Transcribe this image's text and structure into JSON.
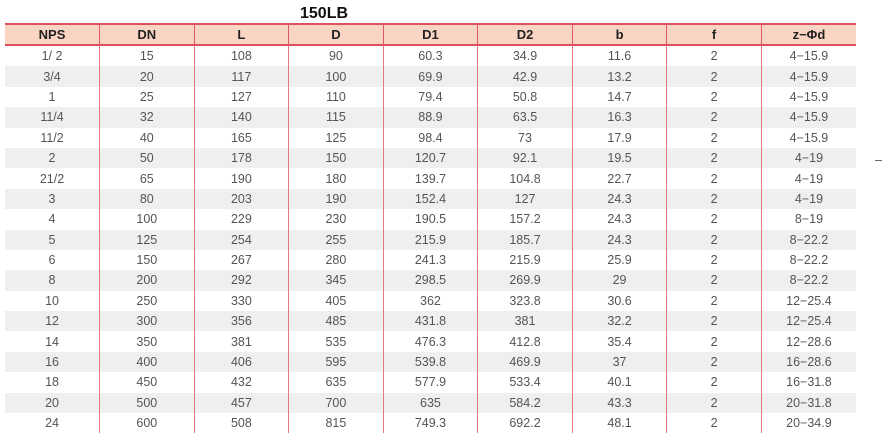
{
  "title": "150LB",
  "headers": [
    "NPS",
    "DN",
    "L",
    "D",
    "D1",
    "D2",
    "b",
    "f",
    "z−Φd"
  ],
  "rows": [
    [
      "1/ 2",
      "15",
      "108",
      "90",
      "60.3",
      "34.9",
      "11.6",
      "2",
      "4−15.9"
    ],
    [
      "3/4",
      "20",
      "117",
      "100",
      "69.9",
      "42.9",
      "13.2",
      "2",
      "4−15.9"
    ],
    [
      "1",
      "25",
      "127",
      "110",
      "79.4",
      "50.8",
      "14.7",
      "2",
      "4−15.9"
    ],
    [
      "11/4",
      "32",
      "140",
      "115",
      "88.9",
      "63.5",
      "16.3",
      "2",
      "4−15.9"
    ],
    [
      "11/2",
      "40",
      "165",
      "125",
      "98.4",
      "73",
      "17.9",
      "2",
      "4−15.9"
    ],
    [
      "2",
      "50",
      "178",
      "150",
      "120.7",
      "92.1",
      "19.5",
      "2",
      "4−19"
    ],
    [
      "21/2",
      "65",
      "190",
      "180",
      "139.7",
      "104.8",
      "22.7",
      "2",
      "4−19"
    ],
    [
      "3",
      "80",
      "203",
      "190",
      "152.4",
      "127",
      "24.3",
      "2",
      "4−19"
    ],
    [
      "4",
      "100",
      "229",
      "230",
      "190.5",
      "157.2",
      "24.3",
      "2",
      "8−19"
    ],
    [
      "5",
      "125",
      "254",
      "255",
      "215.9",
      "185.7",
      "24.3",
      "2",
      "8−22.2"
    ],
    [
      "6",
      "150",
      "267",
      "280",
      "241.3",
      "215.9",
      "25.9",
      "2",
      "8−22.2"
    ],
    [
      "8",
      "200",
      "292",
      "345",
      "298.5",
      "269.9",
      "29",
      "2",
      "8−22.2"
    ],
    [
      "10",
      "250",
      "330",
      "405",
      "362",
      "323.8",
      "30.6",
      "2",
      "12−25.4"
    ],
    [
      "12",
      "300",
      "356",
      "485",
      "431.8",
      "381",
      "32.2",
      "2",
      "12−25.4"
    ],
    [
      "14",
      "350",
      "381",
      "535",
      "476.3",
      "412.8",
      "35.4",
      "2",
      "12−28.6"
    ],
    [
      "16",
      "400",
      "406",
      "595",
      "539.8",
      "469.9",
      "37",
      "2",
      "16−28.6"
    ],
    [
      "18",
      "450",
      "432",
      "635",
      "577.9",
      "533.4",
      "40.1",
      "2",
      "16−31.8"
    ],
    [
      "20",
      "500",
      "457",
      "700",
      "635",
      "584.2",
      "43.3",
      "2",
      "20−31.8"
    ],
    [
      "24",
      "600",
      "508",
      "815",
      "749.3",
      "692.2",
      "48.1",
      "2",
      "20−34.9"
    ]
  ]
}
